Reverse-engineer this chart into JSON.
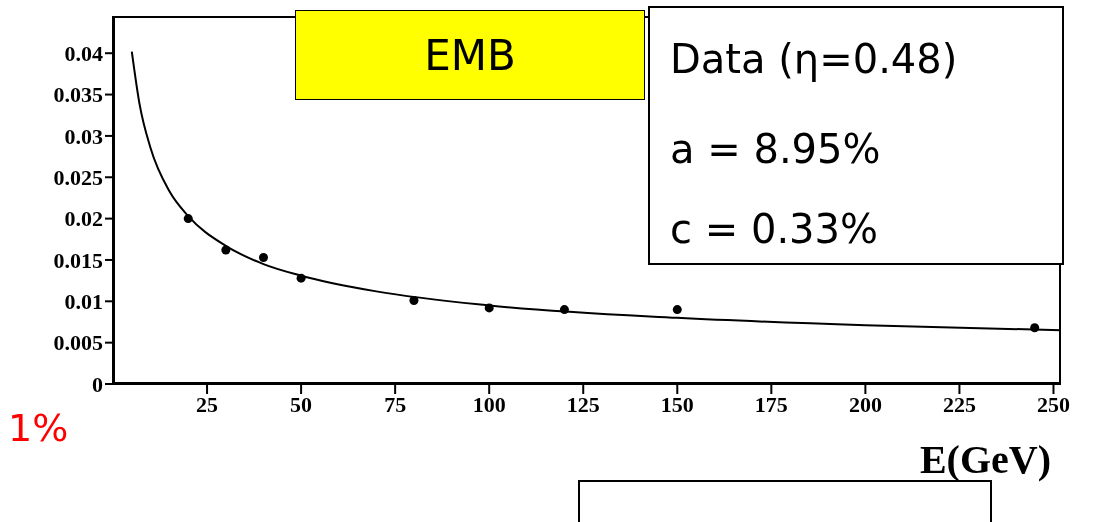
{
  "chart_data": {
    "type": "scatter",
    "xlabel": "E(GeV)",
    "annotations": [
      "EMB",
      "Data (η=0.48)",
      "a = 8.95%",
      "c = 0.33%",
      "1%"
    ],
    "xlim": [
      0,
      252
    ],
    "xticks": [
      25,
      50,
      75,
      100,
      125,
      150,
      175,
      200,
      225,
      250
    ],
    "ylim": [
      0,
      0.0445
    ],
    "yticks": [
      0,
      0.005,
      0.01,
      0.015,
      0.02,
      0.025,
      0.03,
      0.035,
      0.04
    ],
    "grid": false,
    "legend": false,
    "marker": "circle",
    "series": [
      {
        "color": "#000000",
        "x": [
          20,
          30,
          40,
          50,
          80,
          100,
          120,
          150,
          245
        ],
        "values": [
          0.02,
          0.0162,
          0.0153,
          0.0128,
          0.0101,
          0.0092,
          0.009,
          0.009,
          0.0068
        ]
      },
      {
        "type": "line",
        "marker": "none",
        "color": "#000000",
        "x": [
          5,
          7,
          10,
          15,
          20,
          30,
          40,
          50,
          70,
          100,
          150,
          200,
          252
        ],
        "values": [
          0.0402,
          0.034,
          0.0285,
          0.0233,
          0.0203,
          0.0167,
          0.0145,
          0.0131,
          0.0112,
          0.0095,
          0.008,
          0.0071,
          0.0065
        ]
      }
    ]
  }
}
